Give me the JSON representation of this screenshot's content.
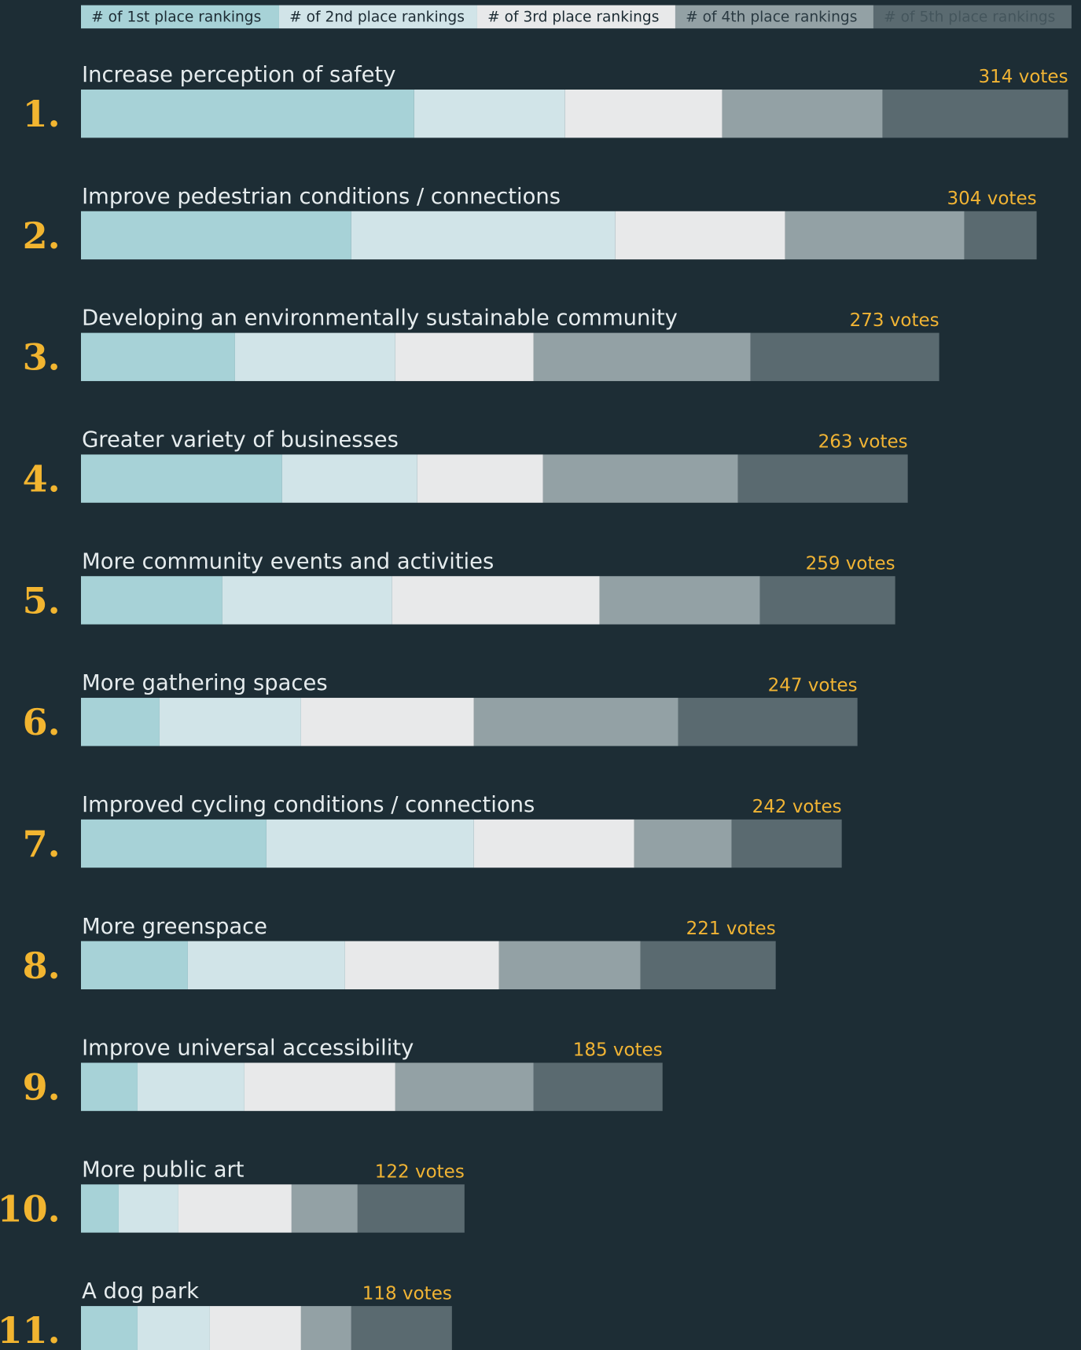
{
  "chart_data": {
    "type": "stacked-bar",
    "categories": [
      "Increase perception of safety",
      "Improve pedestrian conditions / connections",
      "Developing an environmentally sustainable community",
      "Greater variety of businesses",
      "More community events and activities",
      "More gathering spaces",
      "Improved cycling conditions / connections",
      "More greenspace",
      "Improve universal accessibility",
      "More public art",
      "A dog park"
    ],
    "ranks": [
      "1.",
      "2.",
      "3.",
      "4.",
      "5.",
      "6.",
      "7.",
      "8.",
      "9.",
      "10.",
      "11."
    ],
    "totals": [
      314,
      304,
      273,
      263,
      259,
      247,
      242,
      221,
      185,
      122,
      118
    ],
    "total_labels": [
      "314 votes",
      "304 votes",
      "273 votes",
      "263 votes",
      "259 votes",
      "247 votes",
      "242 votes",
      "221 votes",
      "185 votes",
      "122 votes",
      "118 votes"
    ],
    "series": [
      {
        "name": "# of 1st place rankings",
        "color": "#a7d2d7",
        "values": [
          106,
          86,
          49,
          64,
          45,
          25,
          59,
          34,
          18,
          12,
          18
        ]
      },
      {
        "name": "# of 2nd place rankings",
        "color": "#d1e4e8",
        "values": [
          48,
          84,
          51,
          43,
          54,
          45,
          66,
          50,
          34,
          19,
          23
        ]
      },
      {
        "name": "# of 3rd place rankings",
        "color": "#e8e9ea",
        "values": [
          50,
          54,
          44,
          40,
          66,
          55,
          51,
          49,
          48,
          36,
          29
        ]
      },
      {
        "name": "# of 4th place rankings",
        "color": "#93a1a5",
        "values": [
          51,
          57,
          69,
          62,
          51,
          65,
          31,
          45,
          44,
          21,
          16
        ]
      },
      {
        "name": "# of 5th place rankings",
        "color": "#5a6a70",
        "values": [
          59,
          23,
          60,
          54,
          43,
          57,
          35,
          43,
          41,
          34,
          32
        ]
      }
    ]
  }
}
